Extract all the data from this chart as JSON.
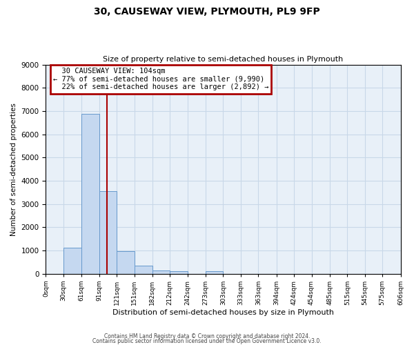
{
  "title_line1": "30, CAUSEWAY VIEW, PLYMOUTH, PL9 9FP",
  "title_line2": "Size of property relative to semi-detached houses in Plymouth",
  "xlabel": "Distribution of semi-detached houses by size in Plymouth",
  "ylabel": "Number of semi-detached properties",
  "property_label": "30 CAUSEWAY VIEW: 104sqm",
  "pct_smaller": 77,
  "pct_larger": 22,
  "n_smaller": 9990,
  "n_larger": 2892,
  "bin_edges": [
    0,
    30,
    61,
    91,
    121,
    151,
    182,
    212,
    242,
    273,
    303,
    333,
    363,
    394,
    424,
    454,
    485,
    515,
    545,
    575,
    606
  ],
  "bin_labels": [
    "0sqm",
    "30sqm",
    "61sqm",
    "91sqm",
    "121sqm",
    "151sqm",
    "182sqm",
    "212sqm",
    "242sqm",
    "273sqm",
    "303sqm",
    "333sqm",
    "363sqm",
    "394sqm",
    "424sqm",
    "454sqm",
    "485sqm",
    "515sqm",
    "545sqm",
    "575sqm",
    "606sqm"
  ],
  "counts": [
    0,
    1130,
    6880,
    3560,
    980,
    350,
    140,
    110,
    0,
    100,
    0,
    0,
    0,
    0,
    0,
    0,
    0,
    0,
    0,
    0
  ],
  "bar_color": "#c5d8f0",
  "bar_edge_color": "#6699cc",
  "vline_color": "#aa0000",
  "vline_x": 104,
  "ylim": [
    0,
    9000
  ],
  "yticks": [
    0,
    1000,
    2000,
    3000,
    4000,
    5000,
    6000,
    7000,
    8000,
    9000
  ],
  "grid_color": "#c8d8e8",
  "background_color": "#e8f0f8",
  "annotation_box_color": "#aa0000",
  "footer_line1": "Contains HM Land Registry data © Crown copyright and database right 2024.",
  "footer_line2": "Contains public sector information licensed under the Open Government Licence v3.0."
}
